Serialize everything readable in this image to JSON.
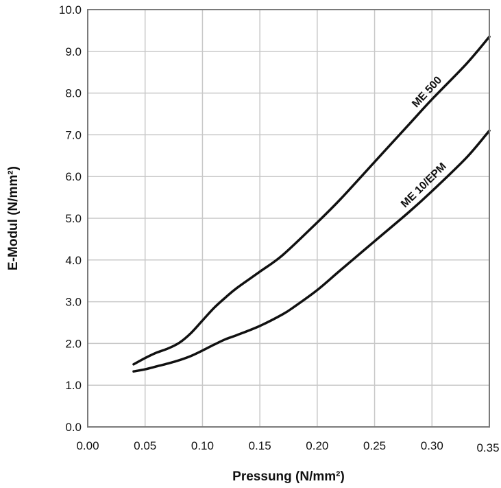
{
  "chart_data": {
    "type": "line",
    "xlabel": "Pressung (N/mm²)",
    "ylabel": "E-Modul (N/mm²)",
    "xlim": [
      0,
      0.35
    ],
    "ylim": [
      0,
      10
    ],
    "x_ticks": [
      0,
      0.05,
      0.1,
      0.15,
      0.2,
      0.25,
      0.3,
      0.35
    ],
    "x_tick_labels": [
      "0.00",
      "0.05",
      "0.10",
      "0.15",
      "0.20",
      "0.25",
      "0.30",
      "0.35"
    ],
    "y_ticks": [
      0,
      1,
      2,
      3,
      4,
      5,
      6,
      7,
      8,
      9,
      10
    ],
    "y_tick_labels": [
      "0.0",
      "1.0",
      "2.0",
      "3.0",
      "4.0",
      "5.0",
      "6.0",
      "7.0",
      "8.0",
      "9.0",
      "10.0"
    ],
    "grid": true,
    "legend": "none",
    "line_color": "#111111",
    "grid_color": "#c8c8c8",
    "series": [
      {
        "name": "ME 500",
        "x": [
          0.04,
          0.05,
          0.06,
          0.07,
          0.08,
          0.09,
          0.1,
          0.11,
          0.12,
          0.13,
          0.15,
          0.17,
          0.2,
          0.22,
          0.25,
          0.28,
          0.3,
          0.33,
          0.35
        ],
        "y": [
          1.5,
          1.65,
          1.78,
          1.88,
          2.02,
          2.25,
          2.55,
          2.85,
          3.1,
          3.33,
          3.72,
          4.12,
          4.9,
          5.45,
          6.35,
          7.25,
          7.85,
          8.7,
          9.35
        ]
      },
      {
        "name": "ME 10/EPM",
        "x": [
          0.04,
          0.05,
          0.06,
          0.07,
          0.08,
          0.09,
          0.1,
          0.11,
          0.12,
          0.13,
          0.15,
          0.17,
          0.18,
          0.2,
          0.22,
          0.25,
          0.28,
          0.3,
          0.33,
          0.35
        ],
        "y": [
          1.33,
          1.38,
          1.45,
          1.52,
          1.6,
          1.7,
          1.83,
          1.97,
          2.1,
          2.2,
          2.42,
          2.7,
          2.88,
          3.28,
          3.75,
          4.45,
          5.15,
          5.65,
          6.45,
          7.1
        ]
      }
    ]
  }
}
